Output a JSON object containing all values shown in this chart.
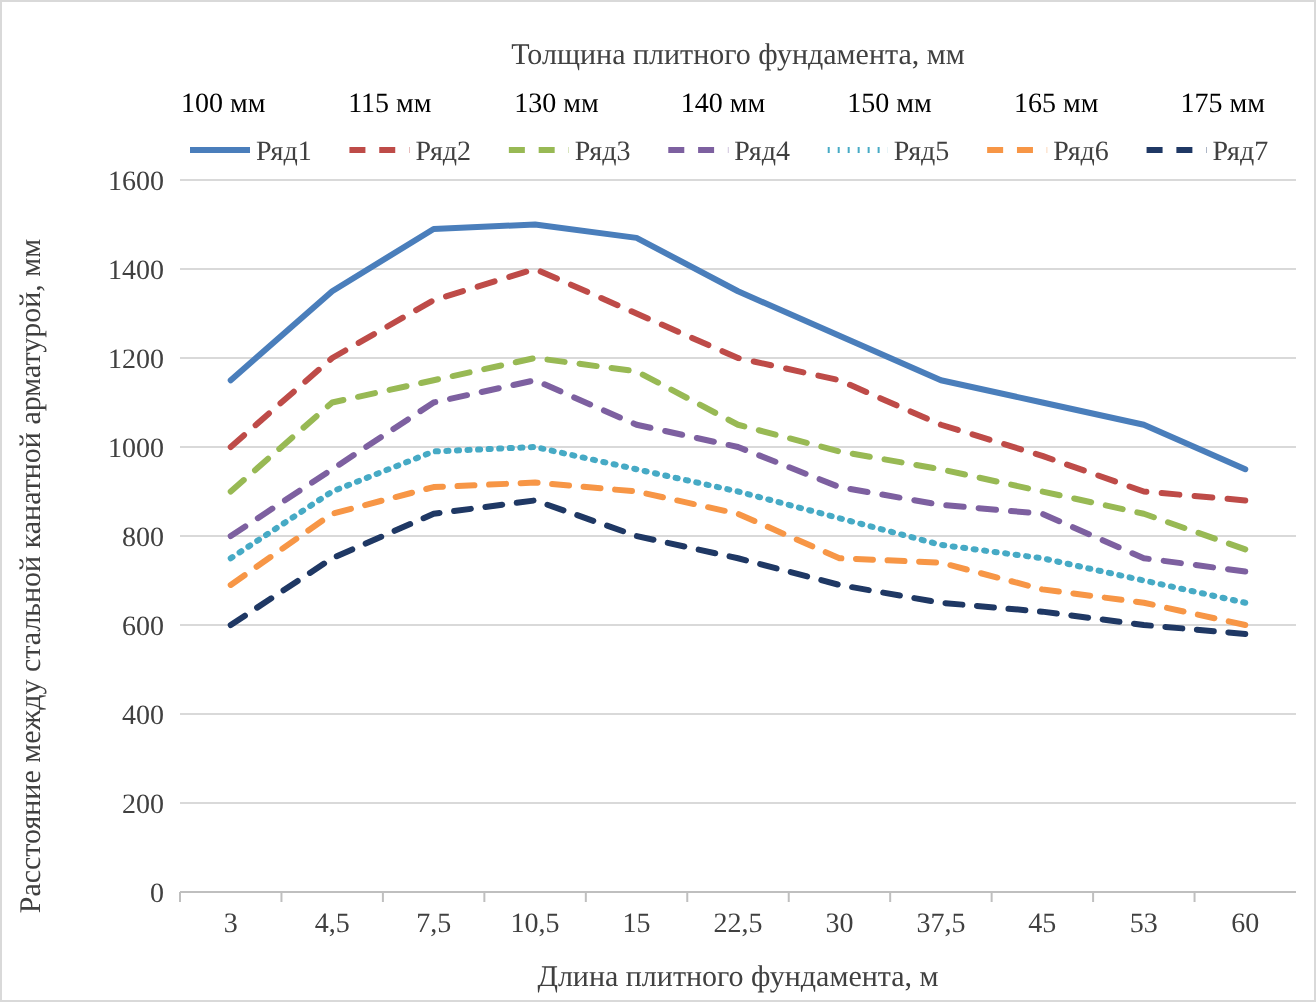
{
  "chart_data": {
    "type": "line",
    "xlabel": "Длина плитного фундамента, м",
    "ylabel": "Расстояние между стальной канатной арматурой, мм",
    "x2label": "Толщина плитного фундамента, мм",
    "categories": [
      "3",
      "4,5",
      "7,5",
      "10,5",
      "15",
      "22,5",
      "30",
      "37,5",
      "45",
      "53",
      "60"
    ],
    "annotations": [
      "100 мм",
      "115 мм",
      "130 мм",
      "140 мм",
      "150 мм",
      "165 мм",
      "175 мм"
    ],
    "ylim": [
      0,
      1600
    ],
    "yticks": [
      0,
      200,
      400,
      600,
      800,
      1000,
      1200,
      1400,
      1600
    ],
    "grid": "y",
    "legend": "top",
    "marker": "none",
    "series": [
      {
        "name": "Ряд1",
        "color": "#4a7ebb",
        "line_style": "solid",
        "values": [
          1150,
          1350,
          1490,
          1500,
          1470,
          1350,
          1250,
          1150,
          1100,
          1050,
          950
        ]
      },
      {
        "name": "Ряд2",
        "color": "#be4b48",
        "line_style": "dashed",
        "values": [
          1000,
          1200,
          1330,
          1400,
          1300,
          1200,
          1150,
          1050,
          980,
          900,
          880
        ]
      },
      {
        "name": "Ряд3",
        "color": "#98b954",
        "line_style": "dashed",
        "values": [
          900,
          1100,
          1150,
          1200,
          1170,
          1050,
          990,
          950,
          900,
          850,
          770
        ]
      },
      {
        "name": "Ряд4",
        "color": "#7d60a0",
        "line_style": "dashed",
        "values": [
          800,
          950,
          1100,
          1150,
          1050,
          1000,
          910,
          870,
          850,
          750,
          720
        ]
      },
      {
        "name": "Ряд5",
        "color": "#46aac5",
        "line_style": "dotted",
        "values": [
          750,
          900,
          990,
          1000,
          950,
          900,
          840,
          780,
          750,
          700,
          650
        ]
      },
      {
        "name": "Ряд6",
        "color": "#f79646",
        "line_style": "dashed",
        "values": [
          690,
          850,
          910,
          920,
          900,
          850,
          750,
          740,
          680,
          650,
          600
        ]
      },
      {
        "name": "Ряд7",
        "color": "#1f3864",
        "line_style": "dashed",
        "values": [
          600,
          750,
          850,
          880,
          800,
          750,
          690,
          650,
          630,
          600,
          580
        ]
      }
    ]
  }
}
